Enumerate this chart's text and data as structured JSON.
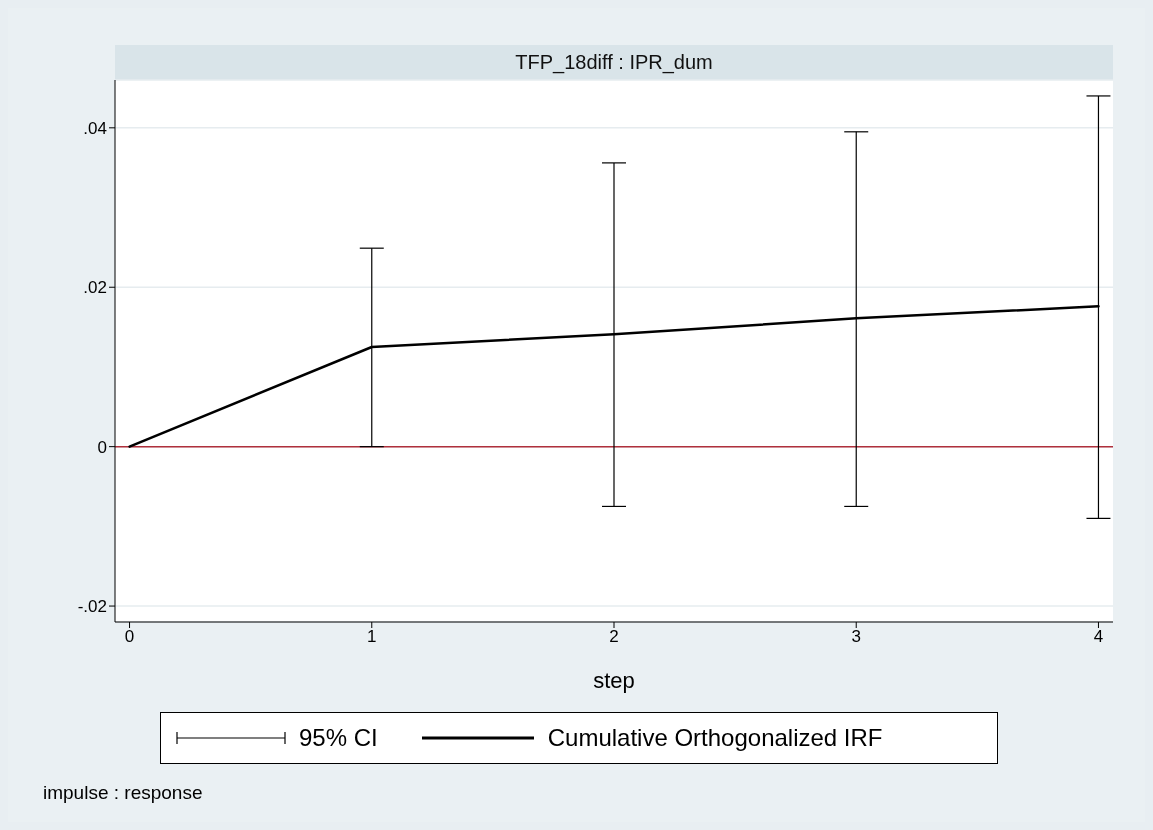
{
  "chart_data": {
    "type": "line",
    "title": "TFP_18diff : IPR_dum",
    "xlabel": "step",
    "x": [
      0,
      1,
      2,
      3,
      4
    ],
    "series": [
      {
        "name": "Cumulative Orthogonalized IRF",
        "color": "#000000",
        "values": [
          0,
          0.0125,
          0.0141,
          0.0161,
          0.0176
        ],
        "errors": [
          null,
          [
            0,
            0.0249
          ],
          [
            -0.0075,
            0.0356
          ],
          [
            -0.0075,
            0.0395
          ],
          [
            -0.009,
            0.044
          ]
        ]
      }
    ],
    "xlim": [
      -0.06,
      4.06
    ],
    "xticks": [
      0,
      1,
      2,
      3,
      4
    ],
    "ylim": [
      -0.022,
      0.046
    ],
    "yticks": [
      {
        "value": -0.02,
        "label": "-.02"
      },
      {
        "value": 0,
        "label": "0"
      },
      {
        "value": 0.02,
        "label": ".02"
      },
      {
        "value": 0.04,
        "label": ".04"
      }
    ],
    "ref_lines": [
      {
        "axis": "y",
        "value": 0,
        "color": "#b0303c"
      }
    ],
    "grid": "y",
    "legend": "bottom",
    "marker": "none",
    "line_style": "solid",
    "annotations": [
      "95% CI",
      "impulse : response"
    ]
  }
}
